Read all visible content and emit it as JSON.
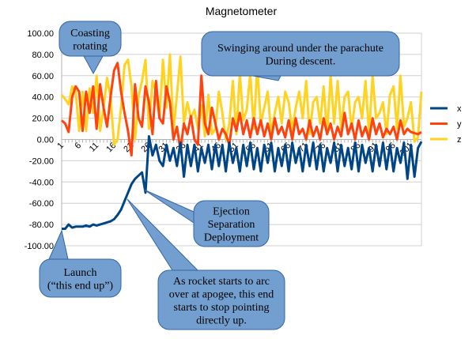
{
  "chart_data": {
    "type": "line",
    "title": "Magnetometer",
    "xlabel": "",
    "ylabel": "",
    "ylim": [
      -100,
      100
    ],
    "y_ticks": [
      "100.00",
      "80.00",
      "60.00",
      "40.00",
      "20.00",
      "0.00",
      "-20.00",
      "-40.00",
      "-60.00",
      "-80.00",
      "-100.00"
    ],
    "x_tick_labels": [
      "1",
      "6",
      "11",
      "16",
      "21",
      "26",
      "31",
      "36",
      "41",
      "46",
      "51",
      "56",
      "61",
      "66",
      "71",
      "76",
      "81",
      "86",
      "91",
      "96",
      "101"
    ],
    "grid": true,
    "legend_position": "right",
    "series": [
      {
        "name": "x",
        "color": "#004586",
        "values": [
          -84,
          -84,
          -80,
          -83,
          -82,
          -82,
          -82,
          -81,
          -82,
          -80,
          -81,
          -80,
          -79,
          -78,
          -77,
          -75,
          -71,
          -66,
          -58,
          -50,
          -42,
          -37,
          -34,
          -31,
          -50,
          3,
          -15,
          -5,
          -20,
          -25,
          -5,
          -20,
          -8,
          -25,
          -3,
          -35,
          -5,
          -25,
          -5,
          -30,
          -8,
          -22,
          -5,
          -28,
          -5,
          -25,
          -5,
          -30,
          -3,
          -22,
          -8,
          -30,
          -5,
          -25,
          -3,
          -28,
          -8,
          -30,
          -5,
          -22,
          -3,
          -30,
          -8,
          -25,
          -5,
          -30,
          -3,
          -22,
          -8,
          -30,
          -5,
          -25,
          -3,
          -28,
          -5,
          -30,
          -8,
          -22,
          -3,
          -30,
          -5,
          -25,
          -8,
          -28,
          -3,
          -30,
          -5,
          -22,
          -8,
          -30,
          -5,
          -25,
          -3,
          -28,
          -5,
          -30,
          -8,
          -22,
          -3,
          -37,
          -5,
          -35,
          -8,
          -2
        ]
      },
      {
        "name": "y",
        "color": "#ff420e",
        "values": [
          18,
          15,
          7,
          40,
          50,
          45,
          8,
          45,
          25,
          50,
          10,
          52,
          30,
          12,
          40,
          65,
          72,
          45,
          25,
          8,
          -15,
          52,
          20,
          12,
          50,
          35,
          5,
          55,
          20,
          15,
          50,
          35,
          0,
          12,
          -10,
          15,
          5,
          22,
          0,
          -5,
          60,
          15,
          5,
          30,
          15,
          0,
          10,
          5,
          -5,
          20,
          8,
          25,
          5,
          18,
          2,
          20,
          5,
          18,
          3,
          15,
          0,
          20,
          5,
          12,
          2,
          18,
          0,
          20,
          5,
          10,
          0,
          18,
          3,
          12,
          0,
          20,
          5,
          15,
          0,
          12,
          3,
          25,
          5,
          15,
          0,
          18,
          3,
          12,
          0,
          20,
          5,
          15,
          2,
          10,
          5,
          12,
          0,
          18,
          5,
          10,
          7,
          6,
          5,
          7
        ]
      },
      {
        "name": "z",
        "color": "#ffd320",
        "values": [
          42,
          38,
          33,
          50,
          45,
          8,
          45,
          8,
          48,
          25,
          60,
          8,
          30,
          58,
          40,
          -5,
          0,
          30,
          70,
          75,
          50,
          0,
          40,
          55,
          75,
          10,
          55,
          45,
          20,
          75,
          30,
          80,
          8,
          42,
          78,
          15,
          35,
          20,
          28,
          10,
          32,
          3,
          42,
          5,
          10,
          45,
          25,
          0,
          15,
          55,
          5,
          62,
          18,
          28,
          62,
          10,
          70,
          15,
          30,
          45,
          5,
          25,
          40,
          15,
          45,
          35,
          8,
          30,
          45,
          20,
          55,
          5,
          35,
          40,
          15,
          50,
          5,
          60,
          15,
          55,
          10,
          40,
          45,
          10,
          35,
          40,
          20,
          55,
          5,
          60,
          20,
          25,
          35,
          5,
          42,
          50,
          10,
          60,
          12,
          20,
          35,
          -2,
          2,
          45
        ]
      }
    ],
    "annotations": [
      {
        "id": "coasting",
        "lines": [
          "Coasting",
          "rotating"
        ]
      },
      {
        "id": "swinging",
        "lines": [
          "Swinging around under the parachute",
          "During descent."
        ]
      },
      {
        "id": "ejection",
        "lines": [
          "Ejection",
          "Separation",
          "Deployment"
        ]
      },
      {
        "id": "launch",
        "lines": [
          "Launch",
          "(“this end up”)"
        ]
      },
      {
        "id": "apogee",
        "lines": [
          "As rocket starts to arc",
          "over at apogee, this end",
          "starts to stop pointing",
          "directly up."
        ]
      }
    ],
    "callout_fill": "#729fcf",
    "callout_stroke": "#3465a4"
  }
}
